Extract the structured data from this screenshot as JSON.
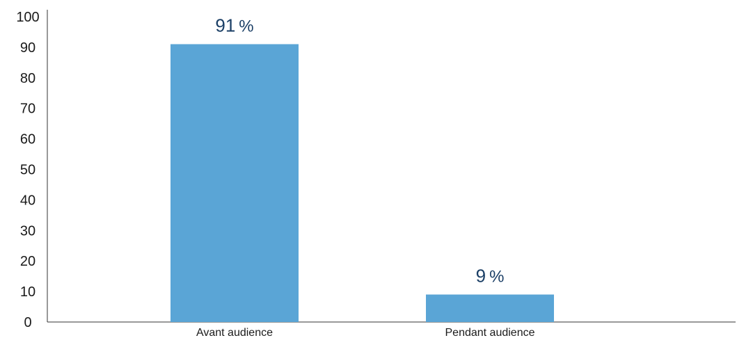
{
  "chart_data": {
    "type": "bar",
    "categories": [
      "Avant audience",
      "Pendant audience"
    ],
    "values": [
      91,
      9
    ],
    "value_suffix": "%",
    "ylim": [
      0,
      100
    ],
    "yticks": [
      0,
      10,
      20,
      30,
      40,
      50,
      60,
      70,
      80,
      90,
      100
    ],
    "grid": false,
    "legend": "none",
    "colors": {
      "bar": "#5aa5d6",
      "data_label": "#1b3f66",
      "axis": "#333333"
    }
  }
}
